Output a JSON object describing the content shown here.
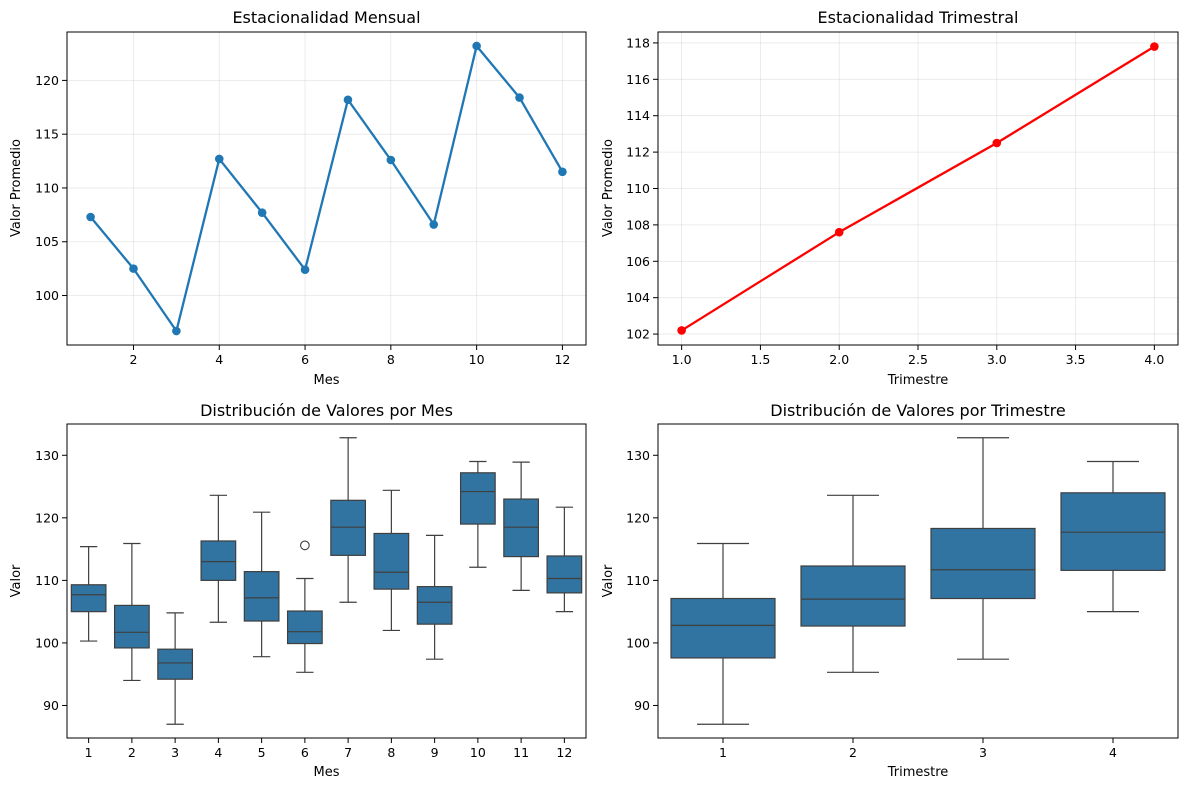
{
  "chart_data": [
    {
      "type": "line",
      "title": "Estacionalidad Mensual",
      "xlabel": "Mes",
      "ylabel": "Valor Promedio",
      "xlim": [
        0.45,
        12.55
      ],
      "ylim": [
        95.4,
        124.5
      ],
      "xticks": [
        2,
        4,
        6,
        8,
        10,
        12
      ],
      "xtick_labels": [
        "2",
        "4",
        "6",
        "8",
        "10",
        "12"
      ],
      "yticks": [
        100,
        105,
        110,
        115,
        120
      ],
      "ytick_labels": [
        "100",
        "105",
        "110",
        "115",
        "120"
      ],
      "grid": true,
      "color": "#1f77b4",
      "marker": "circle",
      "x": [
        1,
        2,
        3,
        4,
        5,
        6,
        7,
        8,
        9,
        10,
        11,
        12
      ],
      "y": [
        107.3,
        102.5,
        96.7,
        112.7,
        107.7,
        102.4,
        118.2,
        112.6,
        106.6,
        123.2,
        118.4,
        111.5
      ]
    },
    {
      "type": "line",
      "title": "Estacionalidad Trimestral",
      "xlabel": "Trimestre",
      "ylabel": "Valor Promedio",
      "xlim": [
        0.85,
        4.15
      ],
      "ylim": [
        101.4,
        118.6
      ],
      "xticks": [
        1.0,
        1.5,
        2.0,
        2.5,
        3.0,
        3.5,
        4.0
      ],
      "xtick_labels": [
        "1.0",
        "1.5",
        "2.0",
        "2.5",
        "3.0",
        "3.5",
        "4.0"
      ],
      "yticks": [
        102,
        104,
        106,
        108,
        110,
        112,
        114,
        116,
        118
      ],
      "ytick_labels": [
        "102",
        "104",
        "106",
        "108",
        "110",
        "112",
        "114",
        "116",
        "118"
      ],
      "grid": true,
      "color": "#ff0000",
      "marker": "circle",
      "x": [
        1,
        2,
        3,
        4
      ],
      "y": [
        102.2,
        107.6,
        112.5,
        117.8
      ]
    },
    {
      "type": "box",
      "title": "Distribución de Valores por Mes",
      "xlabel": "Mes",
      "ylabel": "Valor",
      "ylim": [
        84.8,
        135.0
      ],
      "yticks": [
        90,
        100,
        110,
        120,
        130
      ],
      "ytick_labels": [
        "90",
        "100",
        "110",
        "120",
        "130"
      ],
      "grid": false,
      "color": "#3274a1",
      "categories": [
        "1",
        "2",
        "3",
        "4",
        "5",
        "6",
        "7",
        "8",
        "9",
        "10",
        "11",
        "12"
      ],
      "boxes": [
        {
          "whislo": 100.3,
          "q1": 105.0,
          "med": 107.7,
          "q3": 109.3,
          "whishi": 115.4,
          "fliers": []
        },
        {
          "whislo": 94.0,
          "q1": 99.2,
          "med": 101.7,
          "q3": 106.0,
          "whishi": 115.9,
          "fliers": []
        },
        {
          "whislo": 87.0,
          "q1": 94.2,
          "med": 96.8,
          "q3": 99.0,
          "whishi": 104.8,
          "fliers": []
        },
        {
          "whislo": 103.3,
          "q1": 110.0,
          "med": 113.0,
          "q3": 116.3,
          "whishi": 123.6,
          "fliers": []
        },
        {
          "whislo": 97.8,
          "q1": 103.5,
          "med": 107.2,
          "q3": 111.4,
          "whishi": 120.9,
          "fliers": []
        },
        {
          "whislo": 95.3,
          "q1": 99.9,
          "med": 101.8,
          "q3": 105.1,
          "whishi": 110.3,
          "fliers": [
            115.6
          ]
        },
        {
          "whislo": 106.5,
          "q1": 114.0,
          "med": 118.5,
          "q3": 122.8,
          "whishi": 132.8,
          "fliers": []
        },
        {
          "whislo": 102.0,
          "q1": 108.6,
          "med": 111.3,
          "q3": 117.5,
          "whishi": 124.4,
          "fliers": []
        },
        {
          "whislo": 97.4,
          "q1": 103.0,
          "med": 106.5,
          "q3": 109.0,
          "whishi": 117.2,
          "fliers": []
        },
        {
          "whislo": 112.1,
          "q1": 119.0,
          "med": 124.2,
          "q3": 127.2,
          "whishi": 129.0,
          "fliers": []
        },
        {
          "whislo": 108.4,
          "q1": 113.8,
          "med": 118.5,
          "q3": 123.0,
          "whishi": 128.9,
          "fliers": []
        },
        {
          "whislo": 105.0,
          "q1": 108.0,
          "med": 110.3,
          "q3": 113.9,
          "whishi": 121.7,
          "fliers": []
        }
      ]
    },
    {
      "type": "box",
      "title": "Distribución de Valores por Trimestre",
      "xlabel": "Trimestre",
      "ylabel": "Valor",
      "ylim": [
        84.8,
        135.0
      ],
      "yticks": [
        90,
        100,
        110,
        120,
        130
      ],
      "ytick_labels": [
        "90",
        "100",
        "110",
        "120",
        "130"
      ],
      "grid": false,
      "color": "#3274a1",
      "categories": [
        "1",
        "2",
        "3",
        "4"
      ],
      "boxes": [
        {
          "whislo": 87.0,
          "q1": 97.6,
          "med": 102.8,
          "q3": 107.1,
          "whishi": 115.9,
          "fliers": []
        },
        {
          "whislo": 95.3,
          "q1": 102.7,
          "med": 107.0,
          "q3": 112.3,
          "whishi": 123.6,
          "fliers": []
        },
        {
          "whislo": 97.4,
          "q1": 107.1,
          "med": 111.7,
          "q3": 118.3,
          "whishi": 132.8,
          "fliers": []
        },
        {
          "whislo": 105.0,
          "q1": 111.6,
          "med": 117.7,
          "q3": 124.0,
          "whishi": 129.0,
          "fliers": []
        }
      ]
    }
  ]
}
